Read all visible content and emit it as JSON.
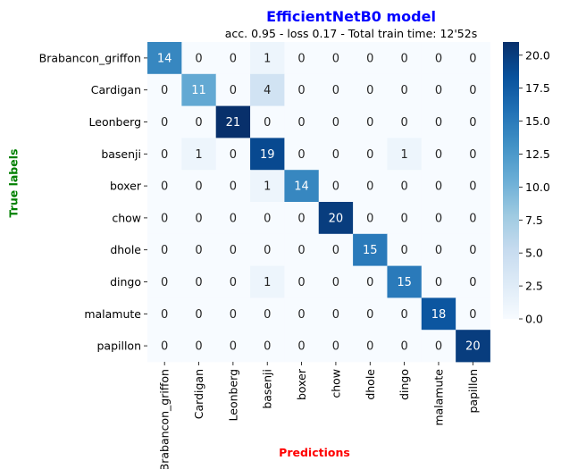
{
  "chart_data": {
    "type": "heatmap",
    "title": "EfficientNetB0 model",
    "subtitle": "acc. 0.95 - loss 0.17 - Total train time: 12'52s",
    "xlabel": "Predictions",
    "ylabel": "True labels",
    "row_labels": [
      "Brabancon_griffon",
      "Cardigan",
      "Leonberg",
      "basenji",
      "boxer",
      "chow",
      "dhole",
      "dingo",
      "malamute",
      "papillon"
    ],
    "col_labels": [
      "Brabancon_griffon",
      "Cardigan",
      "Leonberg",
      "basenji",
      "boxer",
      "chow",
      "dhole",
      "dingo",
      "malamute",
      "papillon"
    ],
    "values": [
      [
        14,
        0,
        0,
        1,
        0,
        0,
        0,
        0,
        0,
        0
      ],
      [
        0,
        11,
        0,
        4,
        0,
        0,
        0,
        0,
        0,
        0
      ],
      [
        0,
        0,
        21,
        0,
        0,
        0,
        0,
        0,
        0,
        0
      ],
      [
        0,
        1,
        0,
        19,
        0,
        0,
        0,
        1,
        0,
        0
      ],
      [
        0,
        0,
        0,
        1,
        14,
        0,
        0,
        0,
        0,
        0
      ],
      [
        0,
        0,
        0,
        0,
        0,
        20,
        0,
        0,
        0,
        0
      ],
      [
        0,
        0,
        0,
        0,
        0,
        0,
        15,
        0,
        0,
        0
      ],
      [
        0,
        0,
        0,
        1,
        0,
        0,
        0,
        15,
        0,
        0
      ],
      [
        0,
        0,
        0,
        0,
        0,
        0,
        0,
        0,
        18,
        0
      ],
      [
        0,
        0,
        0,
        0,
        0,
        0,
        0,
        0,
        0,
        20
      ]
    ],
    "colormap": "Blues",
    "colorbar": {
      "range": [
        0,
        21
      ],
      "ticks": [
        0.0,
        2.5,
        5.0,
        7.5,
        10.0,
        12.5,
        15.0,
        17.5,
        20.0
      ],
      "tick_labels": [
        "0.0",
        "2.5",
        "5.0",
        "7.5",
        "10.0",
        "12.5",
        "15.0",
        "17.5",
        "20.0"
      ]
    }
  }
}
